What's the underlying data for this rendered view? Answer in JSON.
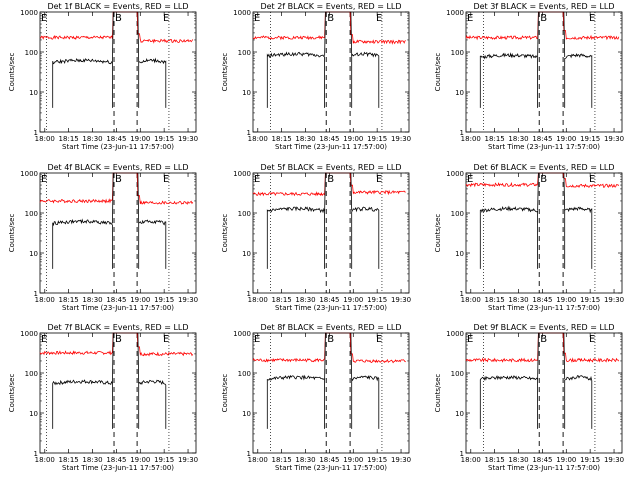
{
  "figure": {
    "start_time_label": "Start Time (23-Jun-11 17:57:00)",
    "ylabel": "Counts/sec",
    "series_colors": {
      "events": "#000000",
      "lld": "#ff0000"
    },
    "marker_labels": {
      "begin": "E",
      "middle": "B",
      "end": "E"
    }
  },
  "chart_data": [
    {
      "type": "line",
      "title": "Det 1f BLACK = Events, RED = LLD",
      "xlabel": "Start Time (23-Jun-11 17:57:00)",
      "ylabel": "Counts/sec",
      "yscale": "log",
      "ylim": [
        1,
        1000
      ],
      "ytick_labels": [
        "1",
        "10",
        "100",
        "1000"
      ],
      "xtick_labels": [
        "18:00",
        "18:15",
        "18:30",
        "18:45",
        "19:00",
        "19:15",
        "19:30"
      ],
      "dashed_lines": [
        46.5,
        61
      ],
      "dotted_lines": [
        4,
        81
      ],
      "series": [
        {
          "name": "Events",
          "color": "#000000",
          "gap": [
            46.5,
            61
          ],
          "start": 8,
          "end": 79,
          "level": 55,
          "cap": [
            [
              "19:00",
              1000
            ],
            [
              "18:45",
              1000
            ]
          ]
        },
        {
          "name": "LLD",
          "color": "#ff0000",
          "start": 0,
          "end": 96,
          "level_left": 230,
          "level_right": 190,
          "peak_x": [
            46.5,
            61
          ]
        }
      ]
    },
    {
      "type": "line",
      "title": "Det 2f BLACK = Events, RED = LLD",
      "xlabel": "Start Time (23-Jun-11 17:57:00)",
      "ylabel": "Counts/sec",
      "yscale": "log",
      "ylim": [
        1,
        1000
      ],
      "ytick_labels": [
        "1",
        "10",
        "100",
        "1000"
      ],
      "xtick_labels": [
        "18:00",
        "18:15",
        "18:30",
        "18:45",
        "19:00",
        "19:15",
        "19:30"
      ],
      "dashed_lines": [
        46,
        61
      ],
      "dotted_lines": [
        11,
        81
      ],
      "series": [
        {
          "name": "Events",
          "color": "#000000",
          "start": 9,
          "end": 79,
          "level": 80
        },
        {
          "name": "LLD",
          "color": "#ff0000",
          "start": 0,
          "end": 96,
          "level_left": 230,
          "level_right": 180
        }
      ]
    },
    {
      "type": "line",
      "title": "Det 3f BLACK = Events, RED = LLD",
      "xlabel": "Start Time (23-Jun-11 17:57:00)",
      "ylabel": "Counts/sec",
      "yscale": "log",
      "ylim": [
        1,
        1000
      ],
      "ytick_labels": [
        "1",
        "10",
        "100",
        "1000"
      ],
      "xtick_labels": [
        "18:00",
        "18:15",
        "18:30",
        "18:45",
        "19:00",
        "19:15",
        "19:30"
      ],
      "dashed_lines": [
        46,
        61
      ],
      "dotted_lines": [
        11,
        81
      ],
      "series": [
        {
          "name": "Events",
          "color": "#000000",
          "start": 9,
          "end": 79,
          "level": 75
        },
        {
          "name": "LLD",
          "color": "#ff0000",
          "start": 0,
          "end": 96,
          "level_left": 230,
          "level_right": 230
        }
      ]
    },
    {
      "type": "line",
      "title": "Det 4f BLACK = Events, RED = LLD",
      "xlabel": "Start Time (23-Jun-11 17:57:00)",
      "ylabel": "Counts/sec",
      "yscale": "log",
      "ylim": [
        1,
        1000
      ],
      "ytick_labels": [
        "1",
        "10",
        "100",
        "1000"
      ],
      "xtick_labels": [
        "18:00",
        "18:15",
        "18:30",
        "18:45",
        "19:00",
        "19:15",
        "19:30"
      ],
      "dashed_lines": [
        46.5,
        61
      ],
      "dotted_lines": [
        4,
        81
      ],
      "series": [
        {
          "name": "Events",
          "color": "#000000",
          "start": 8,
          "end": 79,
          "level": 55
        },
        {
          "name": "LLD",
          "color": "#ff0000",
          "start": 0,
          "end": 96,
          "level_left": 200,
          "level_right": 180
        }
      ]
    },
    {
      "type": "line",
      "title": "Det 5f BLACK = Events, RED = LLD",
      "xlabel": "Start Time (23-Jun-11 17:57:00)",
      "ylabel": "Counts/sec",
      "yscale": "log",
      "ylim": [
        1,
        1000
      ],
      "ytick_labels": [
        "1",
        "10",
        "100",
        "1000"
      ],
      "xtick_labels": [
        "18:00",
        "18:15",
        "18:30",
        "18:45",
        "19:00",
        "19:15",
        "19:30"
      ],
      "dashed_lines": [
        46,
        61
      ],
      "dotted_lines": [
        11,
        81
      ],
      "series": [
        {
          "name": "Events",
          "color": "#000000",
          "start": 9,
          "end": 79,
          "level": 115
        },
        {
          "name": "LLD",
          "color": "#ff0000",
          "start": 0,
          "end": 96,
          "level_left": 300,
          "level_right": 330
        }
      ]
    },
    {
      "type": "line",
      "title": "Det 6f BLACK = Events, RED = LLD",
      "xlabel": "Start Time (23-Jun-11 17:57:00)",
      "ylabel": "Counts/sec",
      "yscale": "log",
      "ylim": [
        1,
        1000
      ],
      "ytick_labels": [
        "1",
        "10",
        "100",
        "1000"
      ],
      "xtick_labels": [
        "18:00",
        "18:15",
        "18:30",
        "18:45",
        "19:00",
        "19:15",
        "19:30"
      ],
      "dashed_lines": [
        46,
        61
      ],
      "dotted_lines": [
        11,
        81
      ],
      "series": [
        {
          "name": "Events",
          "color": "#000000",
          "start": 9,
          "end": 79,
          "level": 115
        },
        {
          "name": "LLD",
          "color": "#ff0000",
          "start": 0,
          "end": 96,
          "level_left": 510,
          "level_right": 480
        }
      ]
    },
    {
      "type": "line",
      "title": "Det 7f BLACK = Events, RED = LLD",
      "xlabel": "Start Time (23-Jun-11 17:57:00)",
      "ylabel": "Counts/sec",
      "yscale": "log",
      "ylim": [
        1,
        1000
      ],
      "ytick_labels": [
        "1",
        "10",
        "100",
        "1000"
      ],
      "xtick_labels": [
        "18:00",
        "18:15",
        "18:30",
        "18:45",
        "19:00",
        "19:15",
        "19:30"
      ],
      "dashed_lines": [
        46.5,
        61
      ],
      "dotted_lines": [
        4,
        81
      ],
      "series": [
        {
          "name": "Events",
          "color": "#000000",
          "start": 8,
          "end": 79,
          "level": 55
        },
        {
          "name": "LLD",
          "color": "#ff0000",
          "start": 0,
          "end": 96,
          "level_left": 320,
          "level_right": 300
        }
      ]
    },
    {
      "type": "line",
      "title": "Det 8f BLACK = Events, RED = LLD",
      "xlabel": "Start Time (23-Jun-11 17:57:00)",
      "ylabel": "Counts/sec",
      "yscale": "log",
      "ylim": [
        1,
        1000
      ],
      "ytick_labels": [
        "1",
        "10",
        "100",
        "1000"
      ],
      "xtick_labels": [
        "18:00",
        "18:15",
        "18:30",
        "18:45",
        "19:00",
        "19:15",
        "19:30"
      ],
      "dashed_lines": [
        46,
        61
      ],
      "dotted_lines": [
        11,
        81
      ],
      "series": [
        {
          "name": "Events",
          "color": "#000000",
          "start": 9,
          "end": 79,
          "level": 70
        },
        {
          "name": "LLD",
          "color": "#ff0000",
          "start": 0,
          "end": 96,
          "level_left": 210,
          "level_right": 200
        }
      ]
    },
    {
      "type": "line",
      "title": "Det 9f BLACK = Events, RED = LLD",
      "xlabel": "Start Time (23-Jun-11 17:57:00)",
      "ylabel": "Counts/sec",
      "yscale": "log",
      "ylim": [
        1,
        1000
      ],
      "ytick_labels": [
        "1",
        "10",
        "100",
        "1000"
      ],
      "xtick_labels": [
        "18:00",
        "18:15",
        "18:30",
        "18:45",
        "19:00",
        "19:15",
        "19:30"
      ],
      "dashed_lines": [
        46,
        61
      ],
      "dotted_lines": [
        11,
        81
      ],
      "series": [
        {
          "name": "Events",
          "color": "#000000",
          "start": 9,
          "end": 79,
          "level": 70
        },
        {
          "name": "LLD",
          "color": "#ff0000",
          "start": 0,
          "end": 96,
          "level_left": 210,
          "level_right": 210
        }
      ]
    }
  ]
}
